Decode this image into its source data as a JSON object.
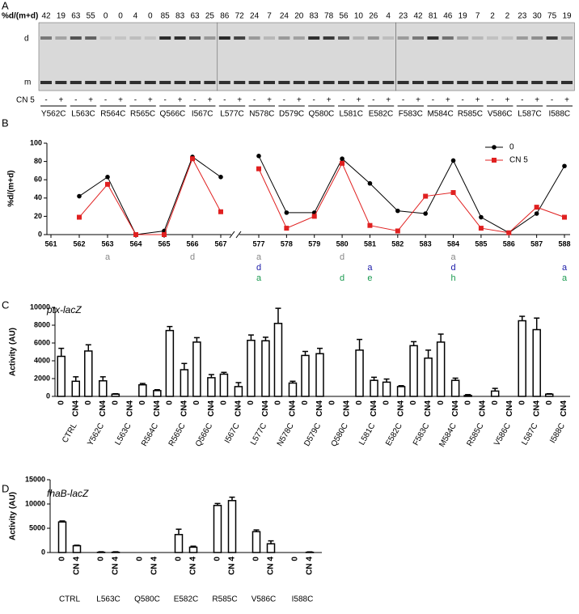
{
  "panel_a": {
    "label": "A",
    "ratio_label": "%d/(m+d)",
    "band_d": "d",
    "band_m": "m",
    "treatment": "CN 5",
    "lane_signs": [
      "-",
      "+"
    ],
    "percent_d": [
      42,
      19,
      63,
      55,
      0,
      0,
      4,
      0,
      85,
      83,
      63,
      25,
      86,
      72,
      24,
      7,
      24,
      20,
      83,
      78,
      56,
      10,
      26,
      4,
      23,
      42,
      81,
      46,
      19,
      7,
      2,
      2,
      23,
      30,
      75,
      19
    ],
    "mutants": [
      "Y562C",
      "L563C",
      "R564C",
      "R565C",
      "Q566C",
      "I567C",
      "L577C",
      "N578C",
      "D579C",
      "Q580C",
      "L581C",
      "E582C",
      "F583C",
      "M584C",
      "R585C",
      "V586C",
      "L587C",
      "I588C"
    ]
  },
  "chart_data": [
    {
      "type": "line",
      "panel_label": "B",
      "y_label": "%d/(m+d)",
      "x": [
        562,
        563,
        564,
        565,
        566,
        567,
        577,
        578,
        579,
        580,
        581,
        582,
        583,
        584,
        585,
        586,
        587,
        588
      ],
      "series": [
        {
          "name": "0",
          "color": "#000000",
          "marker": "circle",
          "values": [
            42,
            63,
            0,
            4,
            85,
            63,
            86,
            24,
            24,
            83,
            56,
            26,
            23,
            81,
            19,
            2,
            23,
            75
          ]
        },
        {
          "name": "CN 5",
          "color": "#e02020",
          "marker": "square",
          "values": [
            19,
            55,
            0,
            0,
            83,
            25,
            72,
            7,
            20,
            78,
            10,
            4,
            42,
            46,
            7,
            2,
            30,
            19
          ]
        }
      ],
      "xlim": [
        561,
        588
      ],
      "axis_break": [
        567,
        577
      ],
      "xticks": [
        561,
        562,
        563,
        564,
        565,
        566,
        567,
        577,
        578,
        579,
        580,
        581,
        582,
        583,
        584,
        585,
        586,
        587,
        588
      ],
      "ylim": [
        0,
        100
      ],
      "yticks": [
        0,
        20,
        40,
        60,
        80,
        100
      ],
      "legend": "top-right",
      "annotations": [
        {
          "color": "#888888",
          "labels": [
            {
              "x": 563,
              "text": "a"
            },
            {
              "x": 566,
              "text": "d"
            },
            {
              "x": 577,
              "text": "a"
            },
            {
              "x": 580,
              "text": "d"
            },
            {
              "x": 584,
              "text": "a"
            }
          ]
        },
        {
          "color": "#1a1aa8",
          "labels": [
            {
              "x": 577,
              "text": "d"
            },
            {
              "x": 581,
              "text": "a"
            },
            {
              "x": 584,
              "text": "d"
            },
            {
              "x": 588,
              "text": "a"
            }
          ]
        },
        {
          "color": "#1a9a50",
          "labels": [
            {
              "x": 577,
              "text": "a"
            },
            {
              "x": 580,
              "text": "d"
            },
            {
              "x": 581,
              "text": "e"
            },
            {
              "x": 584,
              "text": "h"
            },
            {
              "x": 588,
              "text": "a"
            }
          ]
        }
      ]
    },
    {
      "type": "bar",
      "panel_label": "C",
      "title": "ptx-lacZ",
      "y_label": "Activity (AU)",
      "categories": [
        "CTRL",
        "Y562C",
        "L563C",
        "R564C",
        "R565C",
        "Q566C",
        "I567C",
        "L577C",
        "N578C",
        "D579C",
        "Q580C",
        "L581C",
        "E582C",
        "F583C",
        "M584C",
        "R585C",
        "V586C",
        "L587C",
        "I588C"
      ],
      "series": [
        {
          "name": "0",
          "color": "#ffffff",
          "values": [
            4500,
            5100,
            250,
            1300,
            7400,
            6100,
            2500,
            6300,
            8200,
            4600,
            null,
            5200,
            1600,
            5700,
            6100,
            100,
            600,
            8500,
            250
          ],
          "errors": [
            900,
            700,
            50,
            150,
            450,
            500,
            200,
            600,
            1700,
            450,
            null,
            1200,
            350,
            450,
            900,
            100,
            300,
            500,
            50
          ]
        },
        {
          "name": "CN4",
          "color": "#ffffff",
          "values": [
            1700,
            1750,
            null,
            650,
            3000,
            2100,
            1100,
            6250,
            1500,
            4800,
            null,
            1800,
            1100,
            4300,
            1800,
            null,
            null,
            7500,
            null
          ],
          "errors": [
            500,
            450,
            null,
            100,
            700,
            350,
            450,
            400,
            200,
            600,
            null,
            350,
            100,
            900,
            250,
            null,
            null,
            1300,
            null
          ]
        }
      ],
      "ylim": [
        0,
        10000
      ],
      "yticks": [
        0,
        2000,
        4000,
        6000,
        8000,
        10000
      ],
      "rotate_categories": true
    },
    {
      "type": "bar",
      "panel_label": "D",
      "title": "fhaB-lacZ",
      "y_label": "Activity (AU)",
      "categories": [
        "CTRL",
        "L563C",
        "Q580C",
        "E582C",
        "R585C",
        "V586C",
        "I588C"
      ],
      "series": [
        {
          "name": "0",
          "color": "#ffffff",
          "values": [
            6300,
            50,
            null,
            3700,
            9700,
            4300,
            null
          ],
          "errors": [
            200,
            100,
            null,
            1100,
            400,
            350,
            null
          ]
        },
        {
          "name": "CN 4",
          "color": "#ffffff",
          "values": [
            1400,
            50,
            null,
            1100,
            10700,
            1800,
            50
          ],
          "errors": [
            100,
            100,
            null,
            200,
            700,
            600,
            80
          ]
        }
      ],
      "ylim": [
        0,
        15000
      ],
      "yticks": [
        0,
        5000,
        10000,
        15000
      ],
      "rotate_categories": false
    }
  ]
}
